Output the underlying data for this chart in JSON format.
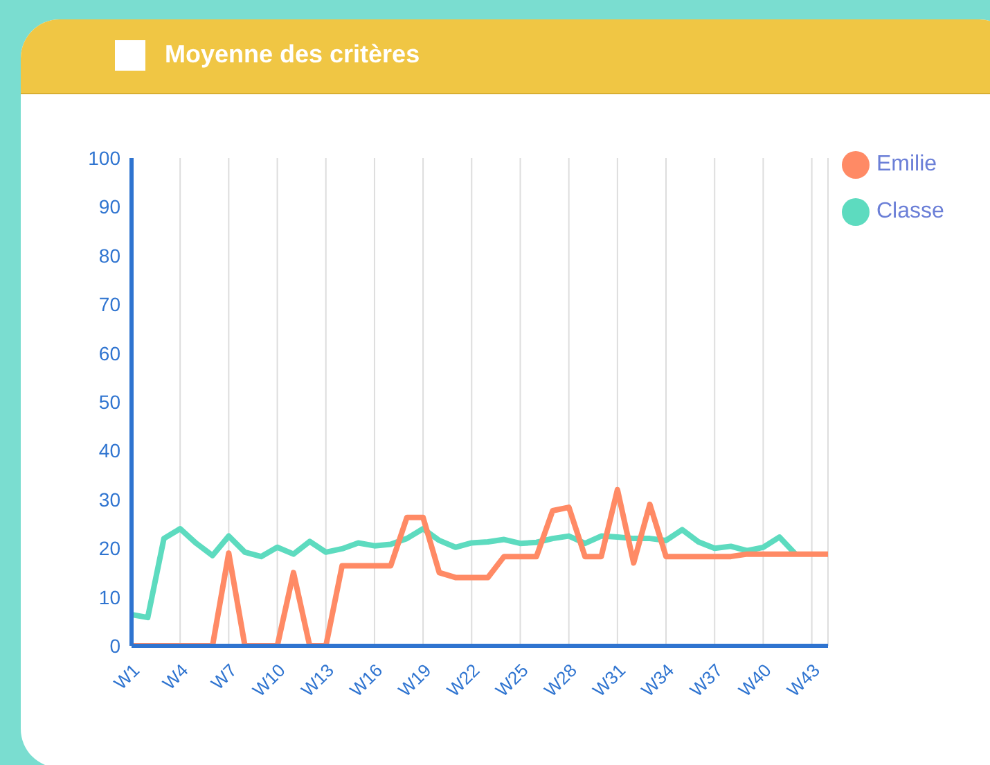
{
  "chart_data": {
    "type": "line",
    "title": "Moyenne des critères",
    "categories": [
      "W1",
      null,
      null,
      "W4",
      null,
      null,
      "W7",
      null,
      null,
      "W10",
      null,
      null,
      "W13",
      null,
      null,
      "W16",
      null,
      null,
      "W19",
      null,
      null,
      "W22",
      null,
      null,
      "W25",
      null,
      null,
      "W28",
      null,
      null,
      "W31",
      null,
      null,
      "W34",
      null,
      null,
      "W37",
      null,
      null,
      "W40",
      null,
      null,
      "W43",
      null
    ],
    "series": [
      {
        "name": "Emilie",
        "color": "#ff8a65",
        "values": [
          0,
          0,
          0,
          0,
          0,
          0,
          19,
          0,
          0,
          0,
          15,
          0,
          0,
          16.4,
          16.4,
          16.4,
          16.4,
          26.3,
          26.3,
          15,
          14,
          14,
          14,
          18.3,
          18.3,
          18.3,
          27.7,
          28.4,
          18.3,
          18.3,
          32,
          17,
          29,
          18.3,
          18.3,
          18.3,
          18.3,
          18.3,
          18.8,
          18.8,
          18.8,
          18.8,
          18.8,
          18.8
        ]
      },
      {
        "name": "Classe",
        "color": "#5ddbbf",
        "values": [
          6.4,
          5.8,
          22,
          24,
          21,
          18.5,
          22.5,
          19.2,
          18.3,
          20.2,
          18.8,
          21.4,
          19.2,
          19.9,
          21.1,
          20.5,
          20.8,
          22,
          24,
          21.6,
          20.2,
          21.1,
          21.3,
          21.8,
          21,
          21.2,
          22,
          22.5,
          21,
          22.5,
          22.3,
          22,
          22,
          21.6,
          23.8,
          21.3,
          20,
          20.4,
          19.5,
          20.2,
          22.3,
          18.8,
          null,
          null
        ]
      }
    ],
    "ylim": [
      0,
      100
    ],
    "yticks": [
      0,
      10,
      20,
      30,
      40,
      50,
      60,
      70,
      80,
      90,
      100
    ],
    "grid": "x",
    "legend": "top right",
    "marker": "none",
    "line_style": "solid"
  }
}
